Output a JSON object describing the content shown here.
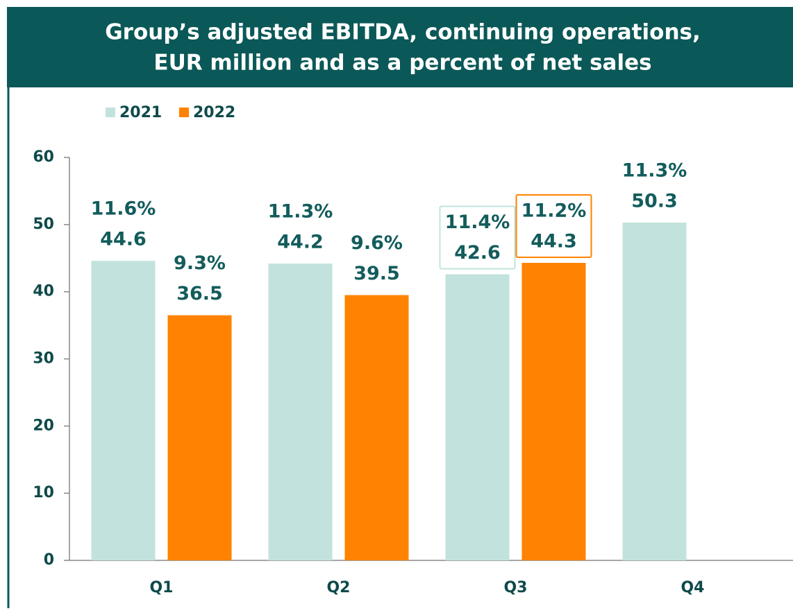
{
  "chart_data": {
    "type": "bar",
    "title": [
      "Group’s adjusted EBITDA, continuing operations,",
      "EUR million and as a percent of net sales"
    ],
    "categories": [
      "Q1",
      "Q2",
      "Q3",
      "Q4"
    ],
    "series": [
      {
        "name": "2021",
        "color": "#c2e3dd",
        "values": [
          44.6,
          44.2,
          42.6,
          50.3
        ],
        "percent_labels": [
          "11.6%",
          "11.3%",
          "11.4%",
          "11.3%"
        ]
      },
      {
        "name": "2022",
        "color": "#ff8200",
        "values": [
          36.5,
          39.5,
          44.3,
          null
        ],
        "percent_labels": [
          "9.3%",
          "9.6%",
          "11.2%",
          null
        ]
      }
    ],
    "highlight": "Q3",
    "ylim": [
      0,
      60
    ],
    "yticks": [
      0,
      10,
      20,
      30,
      40,
      50,
      60
    ]
  }
}
